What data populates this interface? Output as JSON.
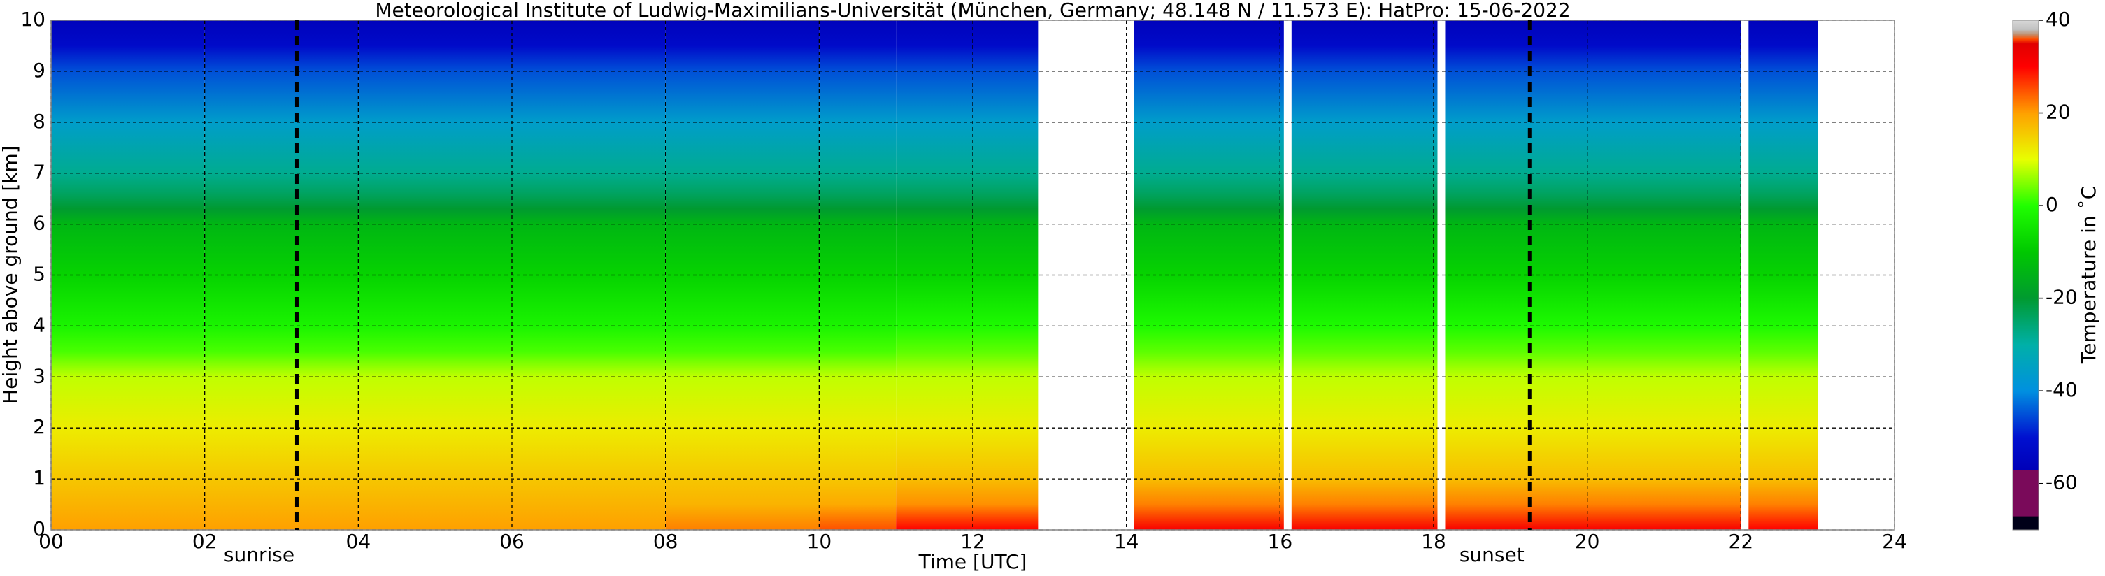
{
  "chart_data": {
    "type": "heatmap",
    "title": "Meteorological Institute of Ludwig-Maximilians-Universität (München, Germany; 48.148 N / 11.573 E):    HatPro: 15-06-2022",
    "xlabel": "Time [UTC]",
    "ylabel": "Height above ground [km]",
    "xlim": [
      0,
      24
    ],
    "xticks": [
      {
        "value": 0,
        "label": "00"
      },
      {
        "value": 2,
        "label": "02"
      },
      {
        "value": 4,
        "label": "04"
      },
      {
        "value": 6,
        "label": "06"
      },
      {
        "value": 8,
        "label": "08"
      },
      10,
      12,
      14,
      16,
      18,
      20,
      22,
      24
    ],
    "ylim": [
      0,
      10
    ],
    "yticks": [
      0,
      1,
      2,
      3,
      4,
      5,
      6,
      7,
      8,
      9,
      10
    ],
    "grid": true,
    "heights": [
      0,
      0.5,
      1,
      2,
      3,
      3.5,
      4,
      5,
      6,
      6.3,
      6.6,
      7,
      8,
      9,
      9.5,
      10
    ],
    "x_edges": [
      0,
      2,
      4,
      6,
      8,
      10,
      11,
      12.85,
      14.1,
      16.05,
      16.15,
      18.05,
      18.15,
      22.0,
      22.1,
      23.0
    ],
    "values": [
      [
        20,
        18,
        16,
        12,
        8,
        2,
        -2,
        -8,
        -14,
        -20,
        -24,
        -28,
        -36,
        -45,
        -52,
        -56
      ],
      [
        20,
        18,
        16,
        12,
        8,
        2,
        -2,
        -8,
        -14,
        -20,
        -24,
        -28,
        -36,
        -45,
        -52,
        -56
      ],
      [
        20,
        18,
        16,
        12,
        8,
        2,
        -2,
        -8,
        -14,
        -20,
        -24,
        -28,
        -36,
        -45,
        -52,
        -56
      ],
      [
        20,
        18,
        16,
        12,
        8,
        2,
        -2,
        -8,
        -14,
        -20,
        -24,
        -28,
        -36,
        -45,
        -52,
        -56
      ],
      [
        22,
        18,
        16,
        12,
        8,
        2,
        -2,
        -8,
        -14,
        -20,
        -24,
        -28,
        -36,
        -45,
        -52,
        -56
      ],
      [
        25,
        19,
        16,
        12,
        8,
        2,
        -2,
        -8,
        -14,
        -20,
        -24,
        -28,
        -36,
        -45,
        -52,
        -56
      ],
      [
        30,
        21,
        17,
        12,
        8,
        3,
        -1,
        -8,
        -14,
        -20,
        -24,
        -28,
        -36,
        -45,
        -52,
        -56
      ],
      null,
      [
        31,
        22,
        17,
        12,
        8,
        3,
        -1,
        -8,
        -14,
        -20,
        -24,
        -28,
        -36,
        -45,
        -52,
        -56
      ],
      null,
      [
        31,
        22,
        17,
        12,
        8,
        3,
        -1,
        -8,
        -14,
        -20,
        -24,
        -28,
        -36,
        -45,
        -52,
        -56
      ],
      null,
      [
        31,
        22,
        17,
        12,
        8,
        3,
        -1,
        -8,
        -14,
        -20,
        -24,
        -28,
        -36,
        -45,
        -52,
        -56
      ],
      null,
      [
        30,
        22,
        17,
        12,
        8,
        3,
        -1,
        -8,
        -14,
        -20,
        -24,
        -28,
        -36,
        -45,
        -52,
        -56
      ]
    ],
    "annotations": [
      {
        "text": "sunrise",
        "x": 3.2
      },
      {
        "text": "sunset",
        "x": 19.25
      }
    ],
    "colorbar": {
      "label": "Temperature in ˚C",
      "clim": [
        -70,
        40
      ],
      "ticks": [
        -60,
        -40,
        -20,
        0,
        20,
        40
      ],
      "colormap": [
        {
          "value": -70,
          "color": "#000018"
        },
        {
          "value": -67,
          "color": "#000018"
        },
        {
          "value": -67,
          "color": "#7a0a5a"
        },
        {
          "value": -57,
          "color": "#7a0a5a"
        },
        {
          "value": -57,
          "color": "#0000b8"
        },
        {
          "value": -50,
          "color": "#0010d0"
        },
        {
          "value": -40,
          "color": "#0090e0"
        },
        {
          "value": -30,
          "color": "#00b0a8"
        },
        {
          "value": -20,
          "color": "#009a30"
        },
        {
          "value": -10,
          "color": "#00c800"
        },
        {
          "value": 0,
          "color": "#20ff00"
        },
        {
          "value": 10,
          "color": "#e8ff00"
        },
        {
          "value": 20,
          "color": "#ffa000"
        },
        {
          "value": 30,
          "color": "#ff0000"
        },
        {
          "value": 35,
          "color": "#e00000"
        },
        {
          "value": 36,
          "color": "#ff5000"
        },
        {
          "value": 37,
          "color": "#c09070"
        },
        {
          "value": 38,
          "color": "#c0c0c0"
        },
        {
          "value": 40,
          "color": "#d8d8d8"
        }
      ]
    }
  }
}
